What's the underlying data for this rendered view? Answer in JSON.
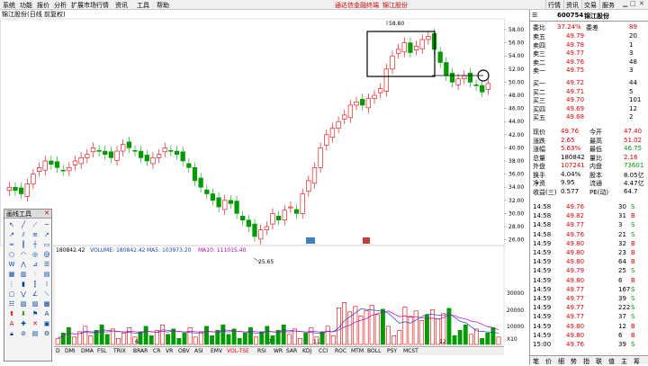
{
  "menu": {
    "items": [
      "系统",
      "功能",
      "报价",
      "分析",
      "扩展市场行情",
      "资讯",
      "工具",
      "帮助"
    ],
    "warning": "通达信金融终端",
    "stock_short": "锦江股份"
  },
  "topright": {
    "buttons": [
      "行情",
      "资讯",
      "交易",
      "服务"
    ]
  },
  "title": "锦江股份(日线 前复权)",
  "chart": {
    "price_labels": [
      "58.00",
      "56.00",
      "54.00",
      "52.00",
      "50.00",
      "48.00",
      "46.00",
      "44.00",
      "42.00",
      "40.00",
      "38.00",
      "36.00",
      "34.00",
      "32.00",
      "30.00",
      "28.00",
      "26.00"
    ],
    "high_label": "58.80",
    "low_label": "25.65",
    "vol_labels": [
      "30000",
      "20000",
      "10000",
      "X10"
    ],
    "month_labels": [
      "6",
      "7",
      "11",
      "12"
    ],
    "vol_info": {
      "left": "180842.42",
      "vol": "VOLUME: 180842.42",
      "ma5": "MA5: 103973.20",
      "ma10": "MA10: 111015.40"
    },
    "colors": {
      "up": "#e00000",
      "down": "#009900",
      "ma5": "#2040c0",
      "ma10": "#c000c0"
    }
  },
  "indicators": [
    "D",
    "DMI",
    "DMA",
    "FSL",
    "TRIX",
    "BRAR",
    "CR",
    "VR",
    "OBV",
    "ASI",
    "EMV",
    "VOL-TSE",
    "RSI",
    "WR",
    "SAR",
    "KDJ",
    "CCI",
    "ROC",
    "MTM",
    "BOLL",
    "PSY",
    "MCST"
  ],
  "drawtools": {
    "title": "画线工具"
  },
  "quote": {
    "code": "600754",
    "name": "锦江股份",
    "weibi_label": "委比",
    "weibi": "37.24%",
    "weicha_label": "委差",
    "weicha": "89",
    "asks": [
      {
        "label": "卖五",
        "price": "49.79",
        "vol": "20"
      },
      {
        "label": "卖四",
        "price": "49.78",
        "vol": "1"
      },
      {
        "label": "卖三",
        "price": "49.77",
        "vol": "3"
      },
      {
        "label": "卖二",
        "price": "49.76",
        "vol": "48"
      },
      {
        "label": "卖一",
        "price": "49.75",
        "vol": "3"
      }
    ],
    "bids": [
      {
        "label": "买一",
        "price": "49.72",
        "vol": "44"
      },
      {
        "label": "买二",
        "price": "49.71",
        "vol": "5"
      },
      {
        "label": "买三",
        "price": "49.70",
        "vol": "101"
      },
      {
        "label": "买四",
        "price": "49.69",
        "vol": "12"
      },
      {
        "label": "买五",
        "price": "49.68",
        "vol": "2"
      }
    ],
    "stats": [
      {
        "l1": "现价",
        "v1": "49.76",
        "l2": "今开",
        "v2": "47.40",
        "c1": "red",
        "c2": "red"
      },
      {
        "l1": "涨跌",
        "v1": "2.65",
        "l2": "最高",
        "v2": "51.02",
        "c1": "red",
        "c2": "red"
      },
      {
        "l1": "涨幅",
        "v1": "5.63%",
        "l2": "最低",
        "v2": "46.75",
        "c1": "red",
        "c2": "green"
      },
      {
        "l1": "总量",
        "v1": "180842",
        "l2": "量比",
        "v2": "2.16",
        "c1": "blk",
        "c2": "red"
      },
      {
        "l1": "外盘",
        "v1": "107241",
        "l2": "内盘",
        "v2": "73601",
        "c1": "red",
        "c2": "green"
      },
      {
        "l1": "换手",
        "v1": "4.04%",
        "l2": "股本",
        "v2": "8.05亿",
        "c1": "blk",
        "c2": "blk"
      },
      {
        "l1": "净资",
        "v1": "9.95",
        "l2": "流通",
        "v2": "4.47亿",
        "c1": "blk",
        "c2": "blk"
      },
      {
        "l1": "收益(三)",
        "v1": "0.577",
        "l2": "PE(动)",
        "v2": "64.7",
        "c1": "blk",
        "c2": "blk"
      }
    ],
    "ticks": [
      {
        "t": "14:58",
        "p": "49.76",
        "v": "30",
        "s": "S"
      },
      {
        "t": "14:58",
        "p": "49.82",
        "v": "31",
        "s": "B"
      },
      {
        "t": "14:58",
        "p": "49.77",
        "v": "3",
        "s": "S"
      },
      {
        "t": "14:58",
        "p": "49.76",
        "v": "21",
        "s": "S"
      },
      {
        "t": "14:59",
        "p": "49.80",
        "v": "32",
        "s": "B"
      },
      {
        "t": "14:59",
        "p": "49.80",
        "v": "23",
        "s": "B"
      },
      {
        "t": "14:59",
        "p": "49.80",
        "v": "64",
        "s": "B"
      },
      {
        "t": "14:59",
        "p": "49.79",
        "v": "25",
        "s": "S"
      },
      {
        "t": "14:59",
        "p": "49.80",
        "v": "6",
        "s": "B"
      },
      {
        "t": "14:59",
        "p": "49.77",
        "v": "167",
        "s": "S"
      },
      {
        "t": "14:59",
        "p": "49.77",
        "v": "39",
        "s": "S"
      },
      {
        "t": "14:59",
        "p": "49.77",
        "v": "222",
        "s": "S"
      },
      {
        "t": "14:59",
        "p": "49.77",
        "v": "37",
        "s": "S"
      },
      {
        "t": "14:59",
        "p": "49.80",
        "v": "12",
        "s": "B"
      },
      {
        "t": "14:59",
        "p": "49.80",
        "v": "6",
        "s": "B"
      },
      {
        "t": "15:00",
        "p": "49.76",
        "v": "39",
        "s": "S"
      }
    ],
    "bottom_tabs": [
      "笔",
      "价",
      "细",
      "势",
      "指",
      "联",
      "值",
      "主",
      "筹"
    ]
  }
}
